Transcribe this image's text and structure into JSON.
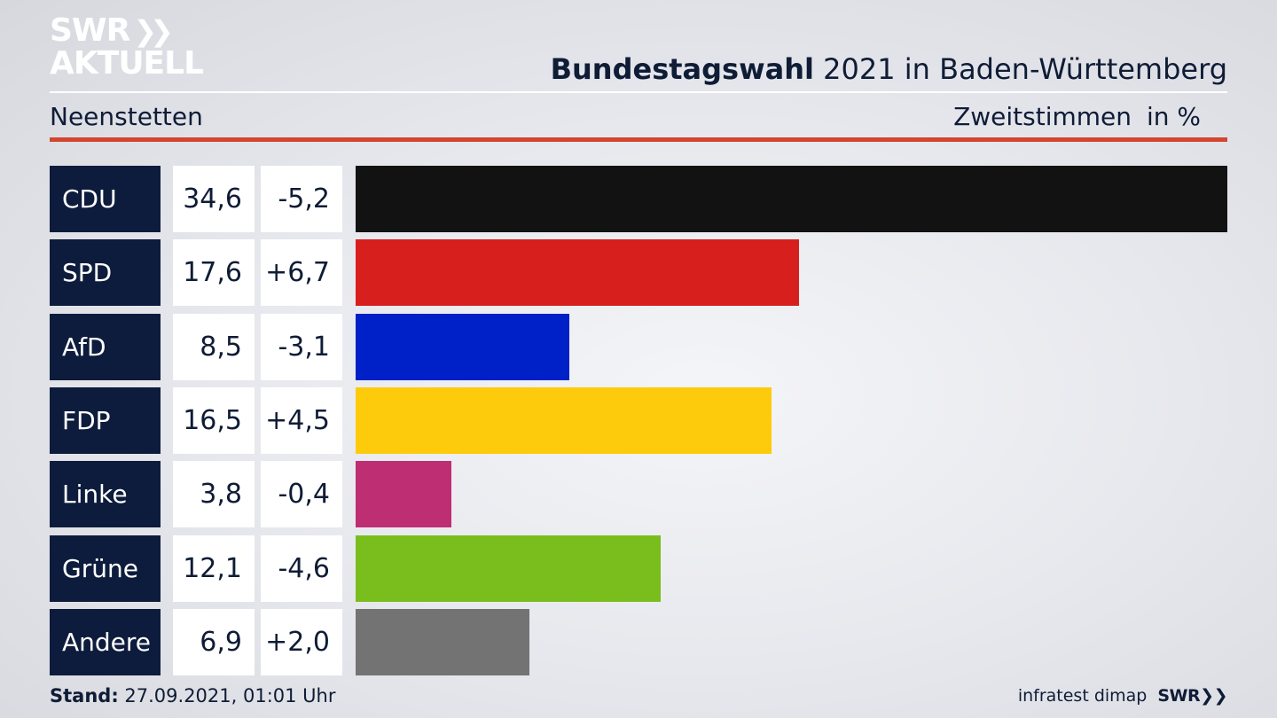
{
  "header": {
    "logo_line1": "SWR",
    "logo_chevrons": "❯❯",
    "logo_line2": "AKTUELL",
    "title_bold": "Bundestagswahl",
    "title_rest": " 2021 in Baden-Württemberg",
    "region": "Neenstetten",
    "measure": "Zweitstimmen",
    "unit": "in %"
  },
  "chart_data": {
    "type": "bar",
    "orientation": "horizontal",
    "categories": [
      "CDU",
      "SPD",
      "AfD",
      "FDP",
      "Linke",
      "Grüne",
      "Andere"
    ],
    "values": [
      34.6,
      17.6,
      8.5,
      16.5,
      3.8,
      12.1,
      6.9
    ],
    "value_labels": [
      "34,6",
      "17,6",
      "8,5",
      "16,5",
      "3,8",
      "12,1",
      "6,9"
    ],
    "change_labels": [
      "-5,2",
      "+6,7",
      "-3,1",
      "+4,5",
      "-0,4",
      "-4,6",
      "+2,0"
    ],
    "changes": [
      -5.2,
      6.7,
      -3.1,
      4.5,
      -0.4,
      -4.6,
      2.0
    ],
    "colors": [
      "#121212",
      "#d7201e",
      "#0020c8",
      "#fdcb0b",
      "#be2e73",
      "#79be1d",
      "#737373"
    ],
    "xlim": [
      0,
      34.6
    ]
  },
  "footer": {
    "stand_label": "Stand:",
    "stand_value": " 27.09.2021, 01:01 Uhr",
    "source": "infratest dimap",
    "logo": "SWR❯❯"
  }
}
